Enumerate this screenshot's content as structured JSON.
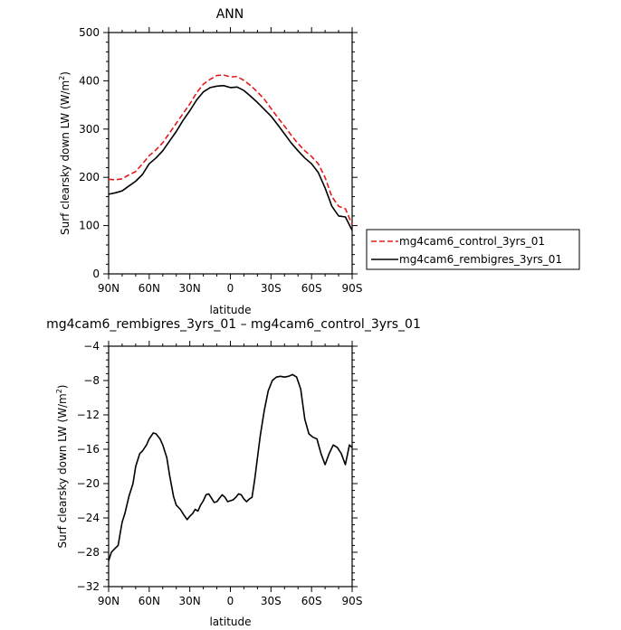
{
  "chart_data": [
    {
      "type": "line",
      "title": "ANN",
      "xlabel": "latitude",
      "ylabel": "Surf clearsky down LW (W/m²)",
      "ylabel_main": "Surf clearsky down LW (W/m",
      "ylabel_sup": "2",
      "ylabel_tail": ")",
      "x_tick_labels": [
        "90N",
        "60N",
        "30N",
        "0",
        "30S",
        "60S",
        "90S"
      ],
      "x_ticks": [
        -90,
        -60,
        -30,
        0,
        30,
        60,
        90
      ],
      "xlim": [
        -90,
        90
      ],
      "ylim": [
        0,
        500
      ],
      "y_ticks": [
        0,
        100,
        200,
        300,
        400,
        500
      ],
      "y_tick_labels": [
        "0",
        "100",
        "200",
        "300",
        "400",
        "500"
      ],
      "legend_position": "right",
      "series": [
        {
          "name": "mg4cam6_control_3yrs_01",
          "color": "#e41a1c",
          "dash": "dashed",
          "x": [
            -90,
            -85,
            -80,
            -75,
            -70,
            -65,
            -60,
            -55,
            -50,
            -45,
            -40,
            -35,
            -30,
            -25,
            -20,
            -15,
            -10,
            -5,
            0,
            5,
            10,
            15,
            20,
            25,
            30,
            35,
            40,
            45,
            50,
            55,
            60,
            65,
            70,
            75,
            80,
            85,
            90
          ],
          "y": [
            196,
            195,
            197,
            205,
            212,
            228,
            245,
            257,
            272,
            292,
            312,
            332,
            352,
            375,
            393,
            403,
            411,
            412,
            408,
            409,
            401,
            390,
            377,
            362,
            343,
            324,
            306,
            287,
            270,
            255,
            243,
            228,
            200,
            160,
            140,
            135,
            102
          ]
        },
        {
          "name": "mg4cam6_rembigres_3yrs_01",
          "color": "#000000",
          "dash": "solid",
          "x": [
            -90,
            -85,
            -80,
            -75,
            -70,
            -65,
            -60,
            -55,
            -50,
            -45,
            -40,
            -35,
            -30,
            -25,
            -20,
            -15,
            -10,
            -5,
            0,
            5,
            10,
            15,
            20,
            25,
            30,
            35,
            40,
            45,
            50,
            55,
            60,
            65,
            70,
            75,
            80,
            85,
            90
          ],
          "y": [
            165,
            168,
            172,
            182,
            192,
            206,
            228,
            240,
            255,
            275,
            295,
            318,
            338,
            360,
            377,
            386,
            389,
            390,
            386,
            387,
            380,
            368,
            355,
            341,
            327,
            309,
            290,
            271,
            255,
            240,
            228,
            210,
            178,
            140,
            120,
            118,
            90
          ]
        }
      ]
    },
    {
      "type": "line",
      "title": "mg4cam6_rembigres_3yrs_01 – mg4cam6_control_3yrs_01",
      "xlabel": "latitude",
      "ylabel": "Surf clearsky down LW (W/m²)",
      "ylabel_main": "Surf clearsky down LW (W/m",
      "ylabel_sup": "2",
      "ylabel_tail": ")",
      "x_tick_labels": [
        "90N",
        "60N",
        "30N",
        "0",
        "30S",
        "60S",
        "90S"
      ],
      "x_ticks": [
        -90,
        -60,
        -30,
        0,
        30,
        60,
        90
      ],
      "xlim": [
        -90,
        90
      ],
      "ylim": [
        -32,
        -4
      ],
      "y_ticks": [
        -32,
        -28,
        -24,
        -20,
        -16,
        -12,
        -8,
        -4
      ],
      "y_tick_labels": [
        "−32",
        "−28",
        "−24",
        "−20",
        "−16",
        "−12",
        "−8",
        "−4"
      ],
      "series": [
        {
          "color": "#000000",
          "x": [
            -90,
            -88,
            -85,
            -83,
            -80,
            -78,
            -75,
            -72,
            -70,
            -67,
            -65,
            -62,
            -60,
            -57,
            -55,
            -52,
            -50,
            -47,
            -45,
            -42,
            -40,
            -37,
            -35,
            -32,
            -30,
            -28,
            -26,
            -24,
            -22,
            -20,
            -18,
            -16,
            -14,
            -12,
            -10,
            -8,
            -6,
            -4,
            -2,
            0,
            2,
            4,
            6,
            8,
            10,
            12,
            14,
            16,
            18,
            20,
            22,
            25,
            28,
            31,
            34,
            37,
            40,
            43,
            46,
            49,
            52,
            55,
            58,
            61,
            64,
            67,
            70,
            73,
            76,
            79,
            82,
            85,
            88,
            90
          ],
          "y": [
            -29,
            -28,
            -27.5,
            -27.2,
            -24.5,
            -23.5,
            -21.5,
            -20,
            -18,
            -16.5,
            -16.2,
            -15.5,
            -14.8,
            -14.1,
            -14.2,
            -14.8,
            -15.5,
            -17,
            -19,
            -21.5,
            -22.5,
            -23,
            -23.5,
            -24.2,
            -23.8,
            -23.5,
            -23,
            -23.2,
            -22.5,
            -22,
            -21.3,
            -21.2,
            -21.7,
            -22.2,
            -22.1,
            -21.7,
            -21.3,
            -21.6,
            -22.1,
            -22,
            -21.9,
            -21.6,
            -21.2,
            -21.3,
            -21.8,
            -22.1,
            -21.8,
            -21.6,
            -19.5,
            -17,
            -14.5,
            -11.5,
            -9.2,
            -8,
            -7.6,
            -7.5,
            -7.6,
            -7.5,
            -7.3,
            -7.6,
            -9,
            -12.5,
            -14.2,
            -14.6,
            -14.8,
            -16.5,
            -17.8,
            -16.5,
            -15.5,
            -15.8,
            -16.5,
            -17.8,
            -15.5,
            -15.8
          ]
        }
      ]
    }
  ]
}
